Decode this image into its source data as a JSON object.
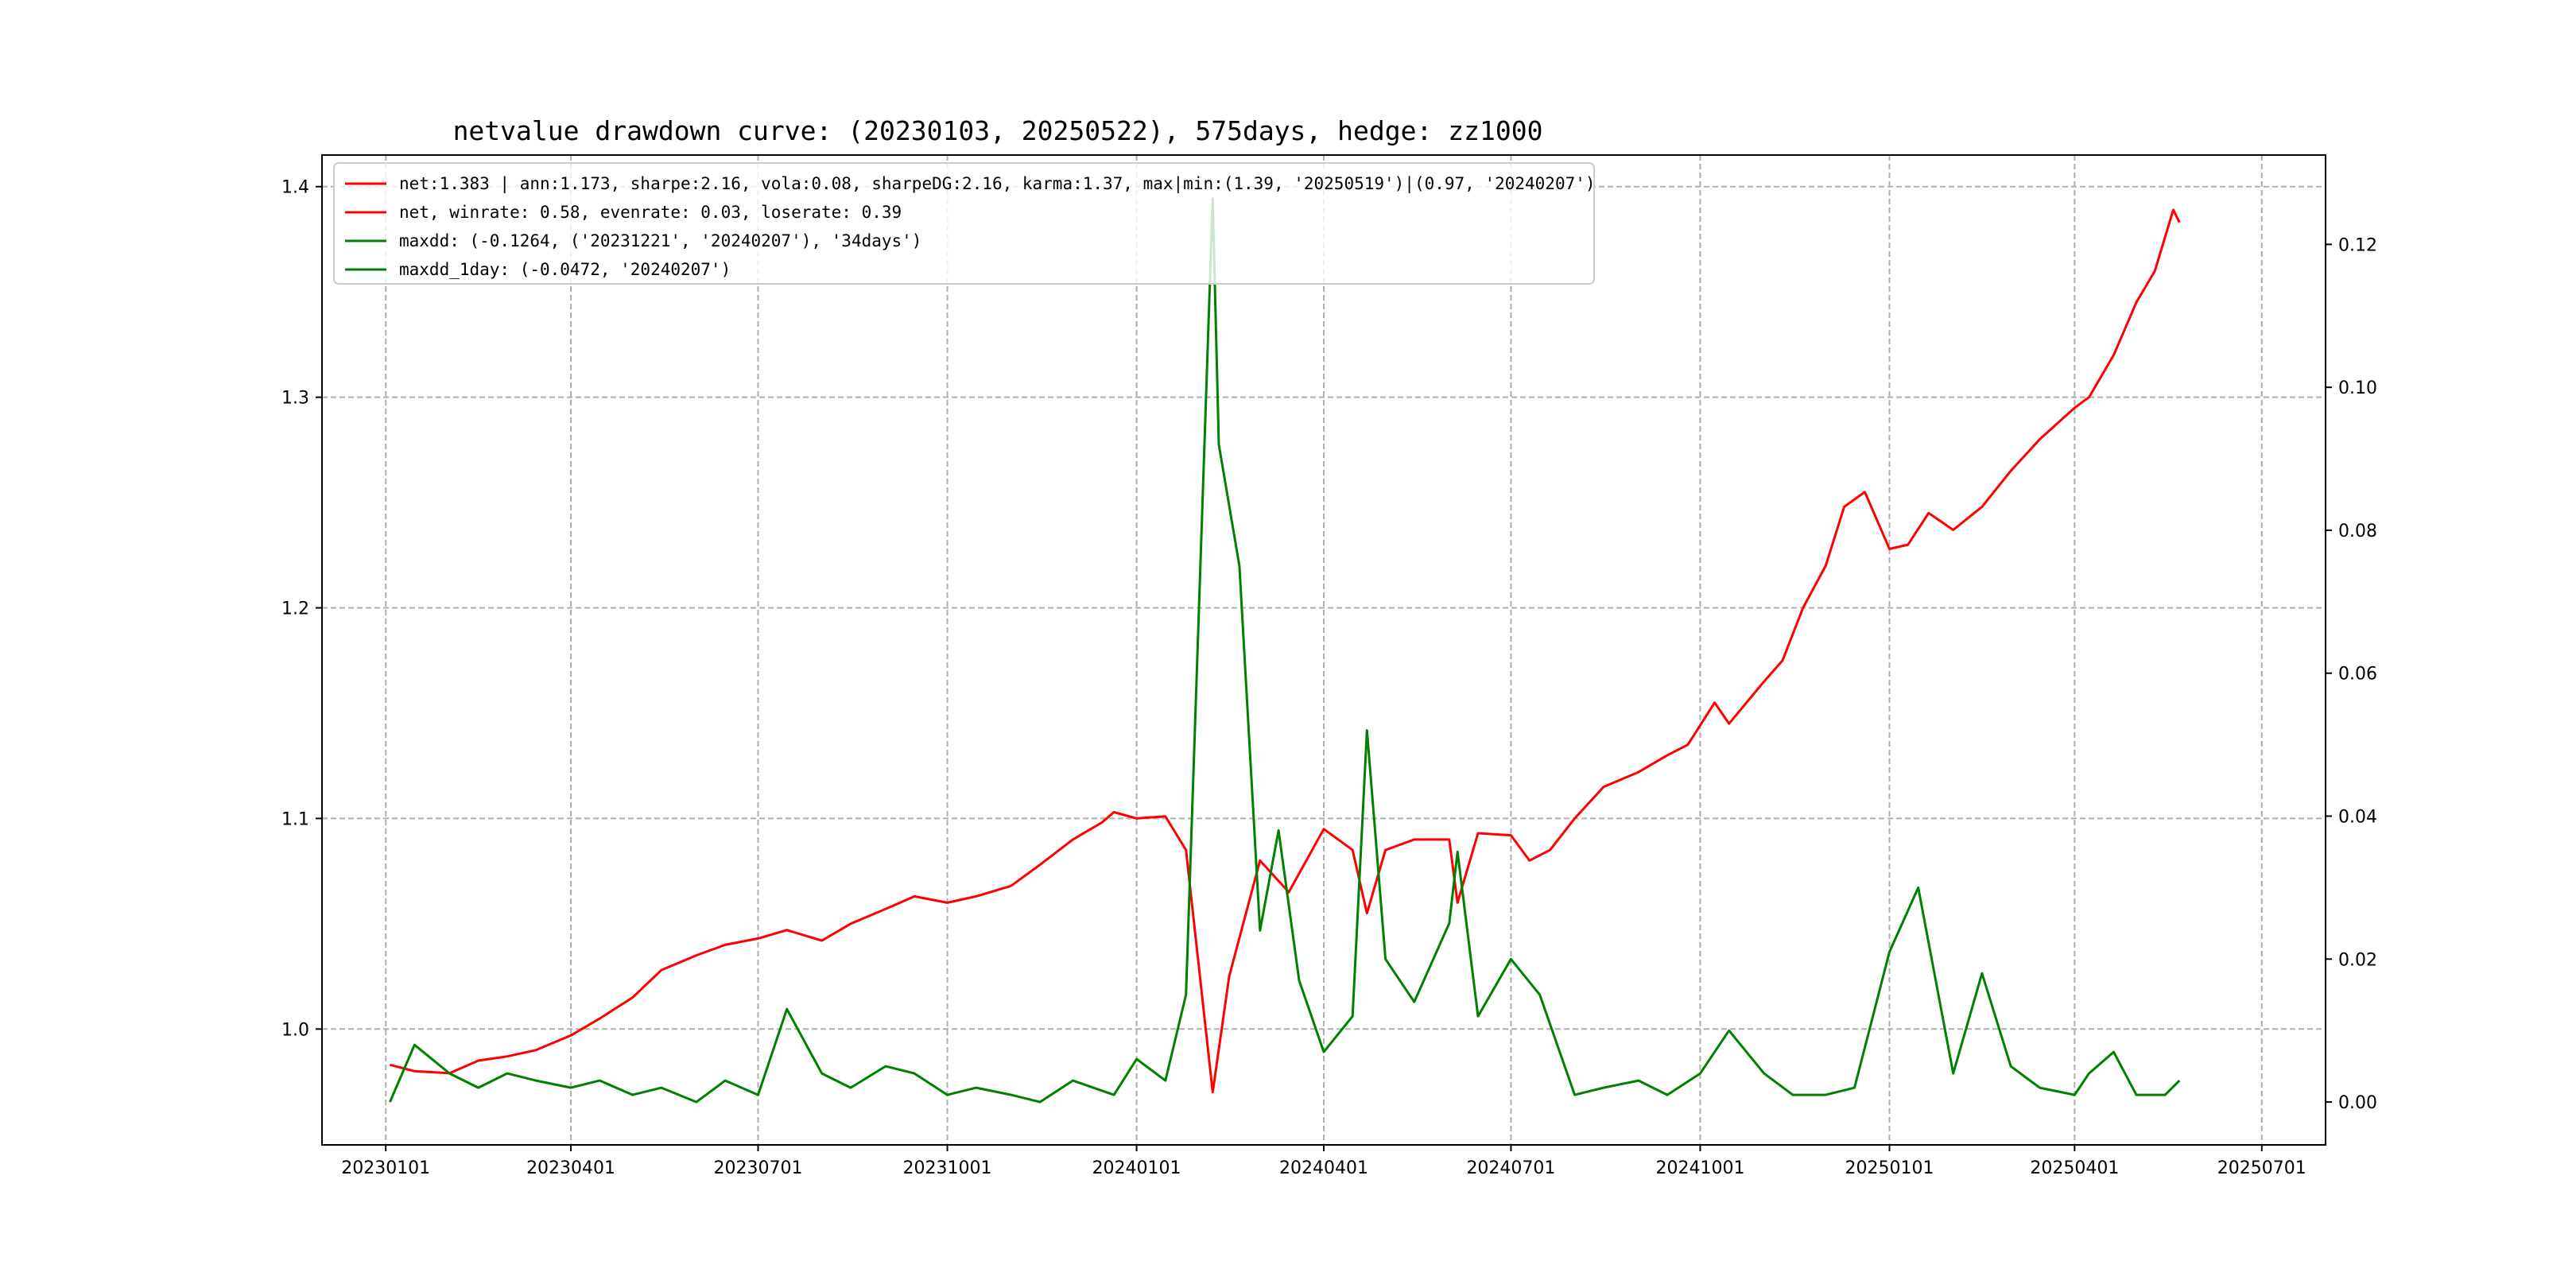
{
  "chart_data": {
    "type": "line",
    "title": "netvalue drawdown curve: (20230103, 20250522), 575days, hedge: zz1000",
    "xlabel": "",
    "ylabel": "",
    "y2label": "",
    "xlim": [
      "2022-12-01",
      "2025-08-01"
    ],
    "ylim": [
      0.945,
      1.415
    ],
    "y2lim": [
      -0.006,
      0.1325
    ],
    "grid": true,
    "legend_position": "upper-left",
    "x_ticks": [
      "20230101",
      "20230401",
      "20230701",
      "20231001",
      "20240101",
      "20240401",
      "20240701",
      "20241001",
      "20250101",
      "20250401",
      "20250701"
    ],
    "y_ticks": [
      "1.0",
      "1.1",
      "1.2",
      "1.3",
      "1.4"
    ],
    "y2_ticks": [
      "0.00",
      "0.02",
      "0.04",
      "0.06",
      "0.08",
      "0.10",
      "0.12"
    ],
    "legend": [
      "net:1.383 | ann:1.173, sharpe:2.16, vola:0.08, sharpeDG:2.16, karma:1.37, max|min:(1.39, '20250519')|(0.97, '20240207')",
      "net, winrate: 0.58, evenrate: 0.03, loserate: 0.39",
      "maxdd: (-0.1264, ('20231221', '20240207'), '34days')",
      "maxdd_1day: (-0.0472, '20240207')"
    ],
    "series": [
      {
        "color": "#ff0000",
        "axis": "left",
        "x": [
          "2023-01-03",
          "2023-01-15",
          "2023-02-01",
          "2023-02-15",
          "2023-03-01",
          "2023-03-15",
          "2023-04-01",
          "2023-04-15",
          "2023-05-01",
          "2023-05-15",
          "2023-06-01",
          "2023-06-15",
          "2023-07-01",
          "2023-07-15",
          "2023-08-01",
          "2023-08-15",
          "2023-09-01",
          "2023-09-15",
          "2023-10-01",
          "2023-10-15",
          "2023-11-01",
          "2023-11-15",
          "2023-12-01",
          "2023-12-15",
          "2023-12-21",
          "2024-01-01",
          "2024-01-15",
          "2024-01-25",
          "2024-02-07",
          "2024-02-15",
          "2024-03-01",
          "2024-03-15",
          "2024-04-01",
          "2024-04-15",
          "2024-04-22",
          "2024-05-01",
          "2024-05-15",
          "2024-06-01",
          "2024-06-05",
          "2024-06-15",
          "2024-07-01",
          "2024-07-10",
          "2024-07-20",
          "2024-08-01",
          "2024-08-15",
          "2024-09-01",
          "2024-09-15",
          "2024-09-25",
          "2024-10-08",
          "2024-10-15",
          "2024-11-01",
          "2024-11-10",
          "2024-11-20",
          "2024-12-01",
          "2024-12-10",
          "2024-12-20",
          "2025-01-01",
          "2025-01-10",
          "2025-01-20",
          "2025-02-01",
          "2025-02-15",
          "2025-03-01",
          "2025-03-15",
          "2025-04-01",
          "2025-04-08",
          "2025-04-20",
          "2025-05-01",
          "2025-05-10",
          "2025-05-19",
          "2025-05-22"
        ],
        "values": [
          0.983,
          0.98,
          0.979,
          0.985,
          0.987,
          0.99,
          0.997,
          1.005,
          1.015,
          1.028,
          1.035,
          1.04,
          1.043,
          1.047,
          1.042,
          1.05,
          1.057,
          1.063,
          1.06,
          1.063,
          1.068,
          1.078,
          1.09,
          1.098,
          1.103,
          1.1,
          1.101,
          1.085,
          0.97,
          1.025,
          1.08,
          1.065,
          1.095,
          1.085,
          1.055,
          1.085,
          1.09,
          1.09,
          1.06,
          1.093,
          1.092,
          1.08,
          1.085,
          1.1,
          1.115,
          1.122,
          1.13,
          1.135,
          1.155,
          1.145,
          1.165,
          1.175,
          1.2,
          1.22,
          1.248,
          1.255,
          1.228,
          1.23,
          1.245,
          1.237,
          1.248,
          1.265,
          1.28,
          1.295,
          1.3,
          1.32,
          1.345,
          1.36,
          1.389,
          1.383
        ]
      },
      {
        "color": "#ff0000",
        "axis": "left",
        "x": [],
        "values": []
      },
      {
        "color": "#008000",
        "axis": "right",
        "x": [
          "2023-01-03",
          "2023-01-15",
          "2023-02-01",
          "2023-02-15",
          "2023-03-01",
          "2023-03-15",
          "2023-04-01",
          "2023-04-15",
          "2023-05-01",
          "2023-05-15",
          "2023-06-01",
          "2023-06-15",
          "2023-07-01",
          "2023-07-15",
          "2023-08-01",
          "2023-08-15",
          "2023-09-01",
          "2023-09-15",
          "2023-10-01",
          "2023-10-15",
          "2023-11-01",
          "2023-11-15",
          "2023-12-01",
          "2023-12-21",
          "2024-01-01",
          "2024-01-15",
          "2024-01-25",
          "2024-02-07",
          "2024-02-10",
          "2024-02-20",
          "2024-03-01",
          "2024-03-10",
          "2024-03-20",
          "2024-04-01",
          "2024-04-15",
          "2024-04-22",
          "2024-05-01",
          "2024-05-15",
          "2024-06-01",
          "2024-06-05",
          "2024-06-15",
          "2024-07-01",
          "2024-07-15",
          "2024-08-01",
          "2024-08-15",
          "2024-09-01",
          "2024-09-15",
          "2024-10-01",
          "2024-10-15",
          "2024-11-01",
          "2024-11-15",
          "2024-12-01",
          "2024-12-15",
          "2025-01-01",
          "2025-01-15",
          "2025-02-01",
          "2025-02-15",
          "2025-03-01",
          "2025-03-15",
          "2025-04-01",
          "2025-04-08",
          "2025-04-20",
          "2025-05-01",
          "2025-05-15",
          "2025-05-22"
        ],
        "values": [
          0.0,
          0.008,
          0.004,
          0.002,
          0.004,
          0.003,
          0.002,
          0.003,
          0.001,
          0.002,
          0.0,
          0.003,
          0.001,
          0.013,
          0.004,
          0.002,
          0.005,
          0.004,
          0.001,
          0.002,
          0.001,
          0.0,
          0.003,
          0.001,
          0.006,
          0.003,
          0.015,
          0.1264,
          0.092,
          0.075,
          0.024,
          0.038,
          0.017,
          0.007,
          0.012,
          0.052,
          0.02,
          0.014,
          0.025,
          0.035,
          0.012,
          0.02,
          0.015,
          0.001,
          0.002,
          0.003,
          0.001,
          0.004,
          0.01,
          0.004,
          0.001,
          0.001,
          0.002,
          0.021,
          0.03,
          0.004,
          0.018,
          0.005,
          0.002,
          0.001,
          0.004,
          0.007,
          0.001,
          0.001,
          0.003
        ]
      },
      {
        "color": "#008000",
        "axis": "right",
        "x": [],
        "values": []
      }
    ]
  }
}
